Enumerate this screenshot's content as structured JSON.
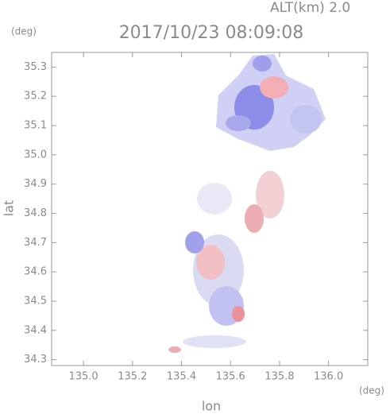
{
  "chart_data": {
    "type": "map",
    "title": "2017/10/23 08:09:08",
    "subtitle": "ALT(km) 2.0",
    "y_unit": "(deg)",
    "x_unit": "(deg)",
    "xlabel": "lon",
    "ylabel": "lat",
    "xlim": [
      134.87,
      136.16
    ],
    "ylim": [
      34.28,
      35.35
    ],
    "xticks": [
      {
        "value": 135,
        "label": "135.0"
      },
      135.2,
      135.4,
      135.6,
      135.8,
      {
        "value": 136,
        "label": "136.0"
      }
    ],
    "yticks": [
      34.3,
      34.4,
      34.5,
      34.6,
      34.7,
      34.8,
      34.9,
      {
        "value": 35,
        "label": "35.0"
      },
      35.1,
      35.2,
      35.3
    ]
  }
}
